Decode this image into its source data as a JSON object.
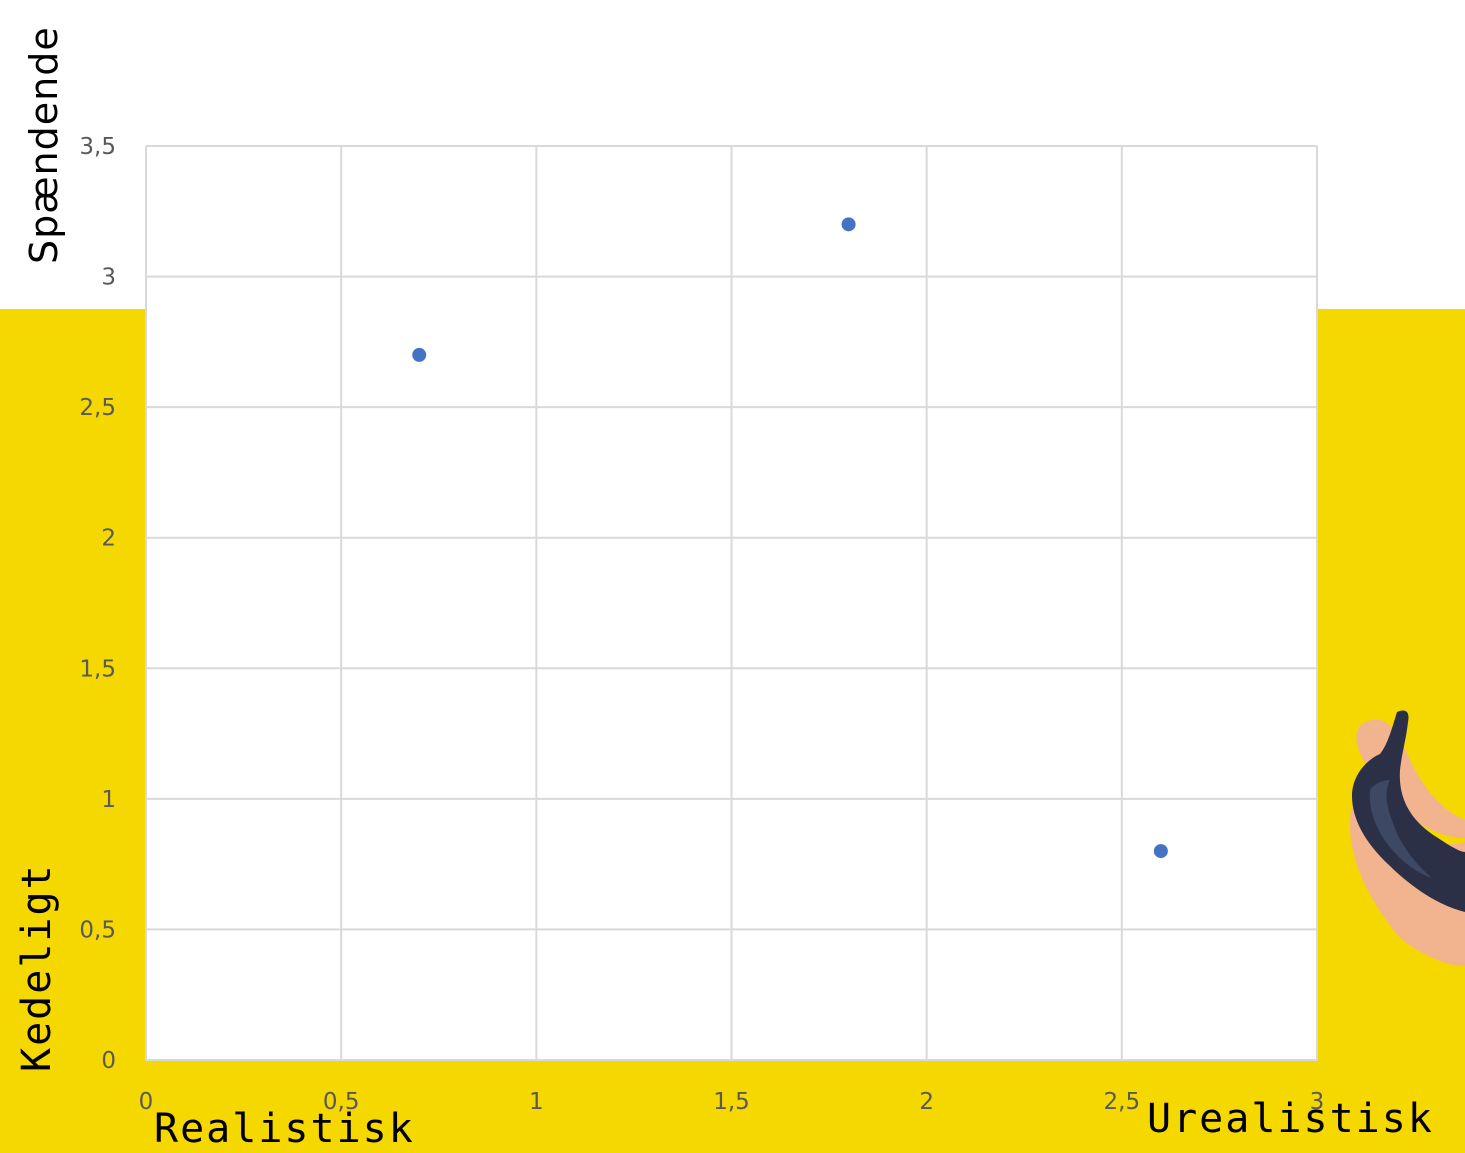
{
  "colors": {
    "accent_yellow": "#f5d800",
    "point": "#4472c4",
    "grid": "#d9d9d9",
    "tick_text": "#595959",
    "plot_bg": "#ffffff",
    "label_text": "#000000"
  },
  "decoration": {
    "icon": "banana-in-hand-icon"
  },
  "labels": {
    "x_low": "Realistisk",
    "x_high": "Urealistisk",
    "y_high": "Spændende",
    "y_low": "Kedeligt"
  },
  "chart_data": {
    "type": "scatter",
    "title": "",
    "xlabel": "",
    "ylabel": "",
    "xlim": [
      0,
      3
    ],
    "ylim": [
      0,
      3.5
    ],
    "x_ticks": [
      0,
      0.5,
      1,
      1.5,
      2,
      2.5,
      3
    ],
    "x_tick_labels": [
      "0",
      "0,5",
      "1",
      "1,5",
      "2",
      "2,5",
      "3"
    ],
    "y_ticks": [
      0,
      0.5,
      1,
      1.5,
      2,
      2.5,
      3,
      3.5
    ],
    "y_tick_labels": [
      "0",
      "0,5",
      "1",
      "1,5",
      "2",
      "2,5",
      "3",
      "3,5"
    ],
    "grid": true,
    "legend": "none",
    "series": [
      {
        "points": [
          {
            "x": 0.7,
            "y": 2.7
          },
          {
            "x": 1.8,
            "y": 3.2
          },
          {
            "x": 2.6,
            "y": 0.8
          }
        ]
      }
    ]
  }
}
